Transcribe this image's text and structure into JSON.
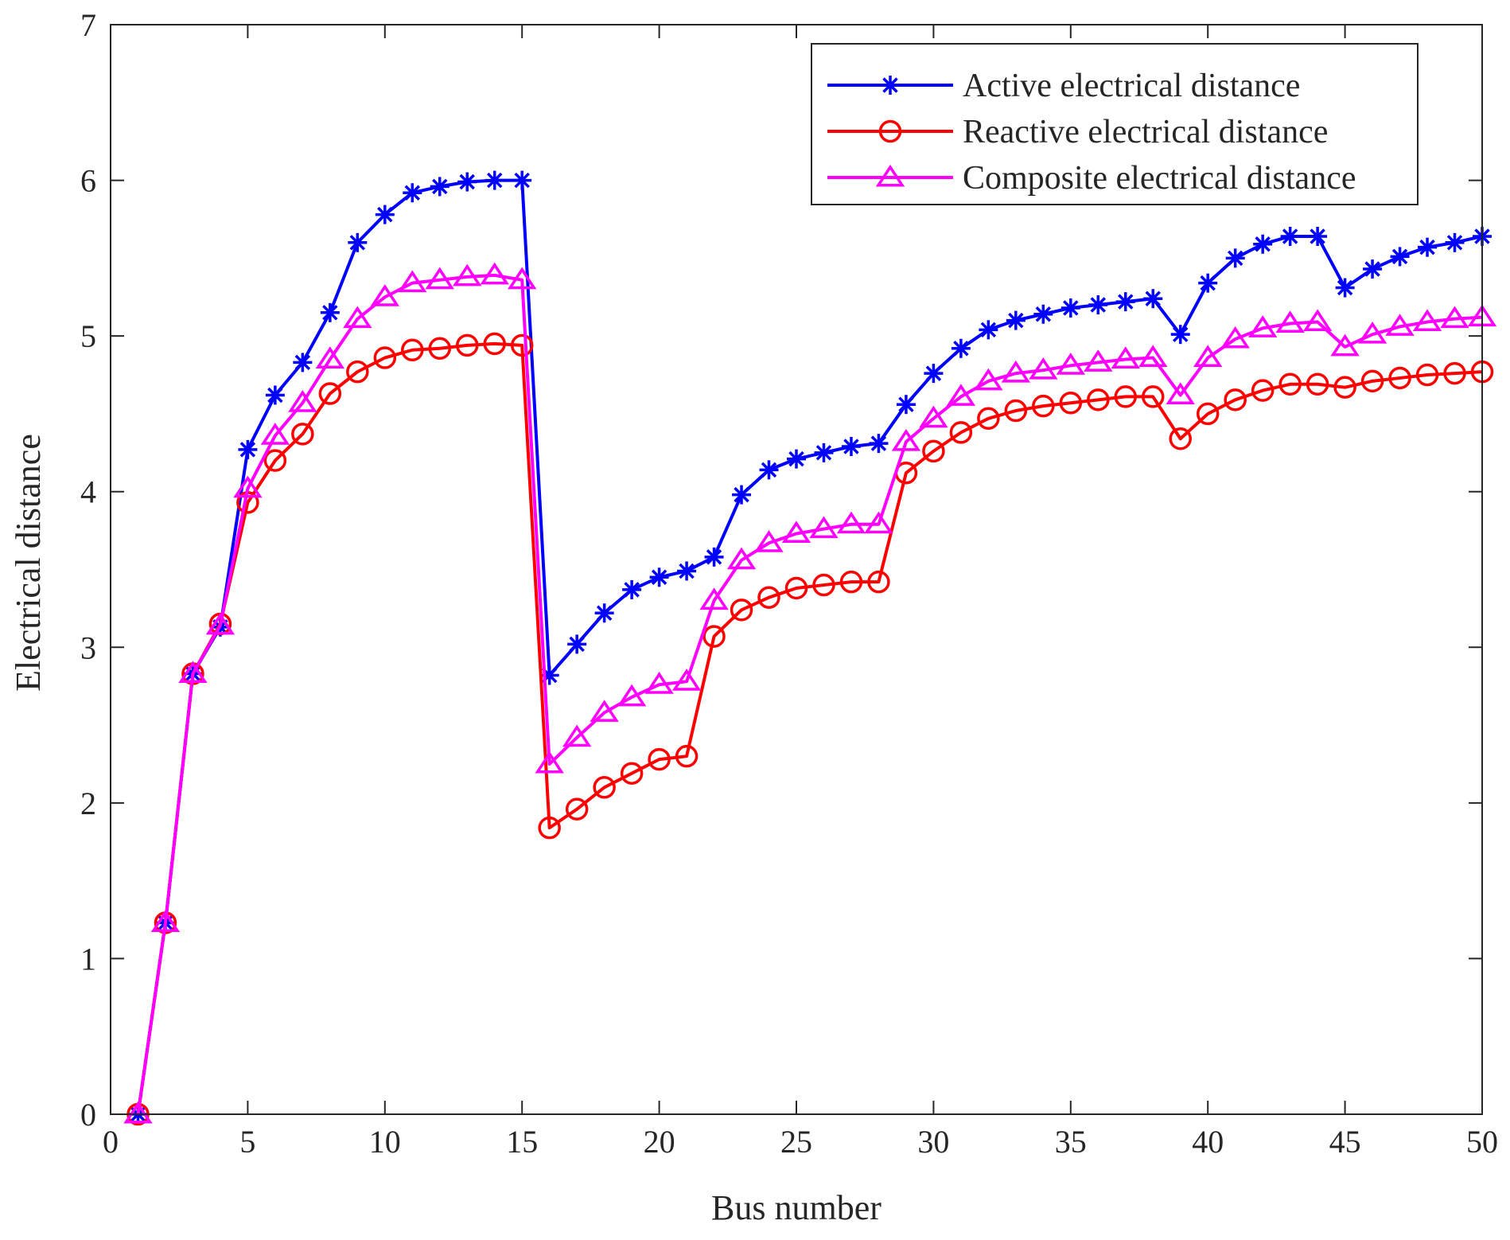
{
  "chart_data": {
    "type": "line",
    "title": "",
    "xlabel": "Bus number",
    "ylabel": "Electrical distance",
    "xlim": [
      0,
      50
    ],
    "ylim": [
      0,
      7
    ],
    "xticks": [
      0,
      5,
      10,
      15,
      20,
      25,
      30,
      35,
      40,
      45,
      50
    ],
    "yticks": [
      0,
      1,
      2,
      3,
      4,
      5,
      6,
      7
    ],
    "grid": false,
    "legend_position": "top-right",
    "x": [
      1,
      2,
      3,
      4,
      5,
      6,
      7,
      8,
      9,
      10,
      11,
      12,
      13,
      14,
      15,
      16,
      17,
      18,
      19,
      20,
      21,
      22,
      23,
      24,
      25,
      26,
      27,
      28,
      29,
      30,
      31,
      32,
      33,
      34,
      35,
      36,
      37,
      38,
      39,
      40,
      41,
      42,
      43,
      44,
      45,
      46,
      47,
      48,
      49,
      50
    ],
    "series": [
      {
        "name": "Active electrical distance",
        "color": "#0000FF",
        "marker": "asterisk",
        "values": [
          0.0,
          1.23,
          2.83,
          3.13,
          4.27,
          4.62,
          4.83,
          5.15,
          5.6,
          5.78,
          5.92,
          5.96,
          5.99,
          6.0,
          6.0,
          2.82,
          3.02,
          3.22,
          3.37,
          3.45,
          3.49,
          3.58,
          3.98,
          4.14,
          4.21,
          4.25,
          4.29,
          4.31,
          4.56,
          4.76,
          4.92,
          5.04,
          5.1,
          5.14,
          5.18,
          5.2,
          5.22,
          5.24,
          5.01,
          5.34,
          5.5,
          5.59,
          5.64,
          5.64,
          5.31,
          5.43,
          5.51,
          5.57,
          5.6,
          5.64
        ]
      },
      {
        "name": "Reactive electrical distance",
        "color": "#FF0000",
        "marker": "circle",
        "values": [
          0.0,
          1.23,
          2.83,
          3.15,
          3.93,
          4.2,
          4.37,
          4.63,
          4.77,
          4.86,
          4.91,
          4.92,
          4.94,
          4.95,
          4.94,
          1.84,
          1.96,
          2.1,
          2.19,
          2.28,
          2.3,
          3.07,
          3.24,
          3.32,
          3.38,
          3.4,
          3.42,
          3.42,
          4.12,
          4.26,
          4.38,
          4.47,
          4.52,
          4.55,
          4.57,
          4.59,
          4.61,
          4.61,
          4.34,
          4.5,
          4.59,
          4.65,
          4.69,
          4.69,
          4.67,
          4.71,
          4.73,
          4.75,
          4.76,
          4.77
        ]
      },
      {
        "name": "Composite electrical distance",
        "color": "#FF00FF",
        "marker": "triangle",
        "values": [
          0.0,
          1.23,
          2.83,
          3.14,
          4.02,
          4.36,
          4.57,
          4.85,
          5.11,
          5.25,
          5.34,
          5.36,
          5.38,
          5.39,
          5.36,
          2.25,
          2.42,
          2.58,
          2.68,
          2.76,
          2.78,
          3.3,
          3.56,
          3.67,
          3.73,
          3.76,
          3.79,
          3.79,
          4.32,
          4.47,
          4.61,
          4.71,
          4.76,
          4.78,
          4.81,
          4.83,
          4.85,
          4.86,
          4.62,
          4.86,
          4.98,
          5.05,
          5.08,
          5.09,
          4.93,
          5.01,
          5.06,
          5.09,
          5.11,
          5.12
        ]
      }
    ]
  }
}
